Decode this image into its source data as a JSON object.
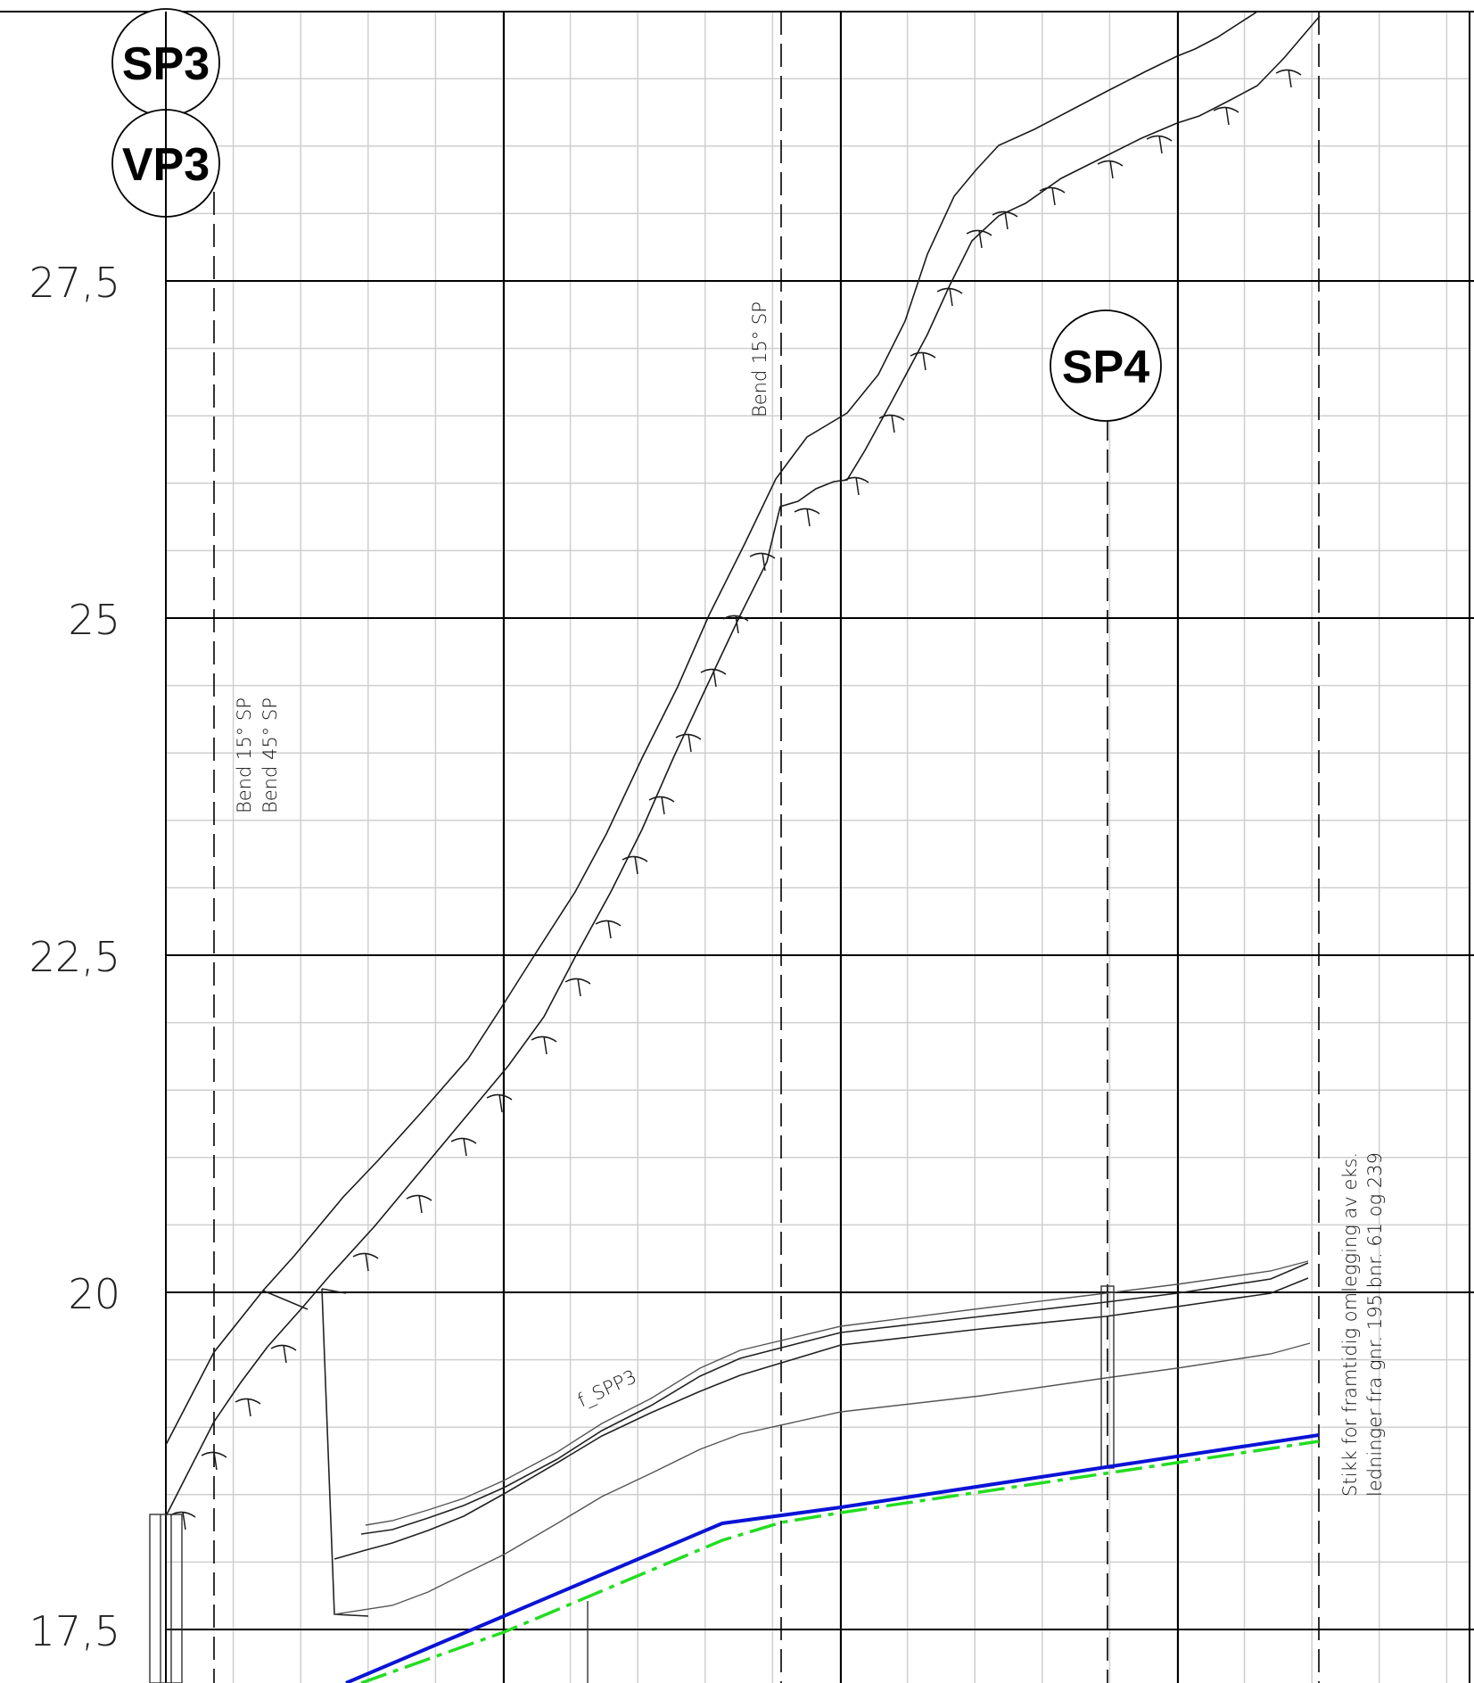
{
  "profile": {
    "elevation_labels": [
      "27,5",
      "25",
      "22,5",
      "20",
      "17,5"
    ],
    "station_markers": [
      {
        "id": "SP3"
      },
      {
        "id": "VP3"
      },
      {
        "id": "SP4"
      }
    ],
    "annotations": {
      "bend_left_1": "Bend 15° SP",
      "bend_left_2": "Bend 45° SP",
      "bend_mid": "Bend 15° SP",
      "pipe_label": "f_SPP3",
      "note_line_1": "Stikk for framtidig omlegging av eks.",
      "note_line_2": "ledninger fra gnr. 195 bnr. 61 og 239"
    },
    "colors": {
      "grid_minor": "#cfcfcf",
      "grid_major": "#000000",
      "terrain": "#1a1a1a",
      "pipe_blue": "#0a14d6",
      "pipe_green": "#22dd22"
    }
  }
}
